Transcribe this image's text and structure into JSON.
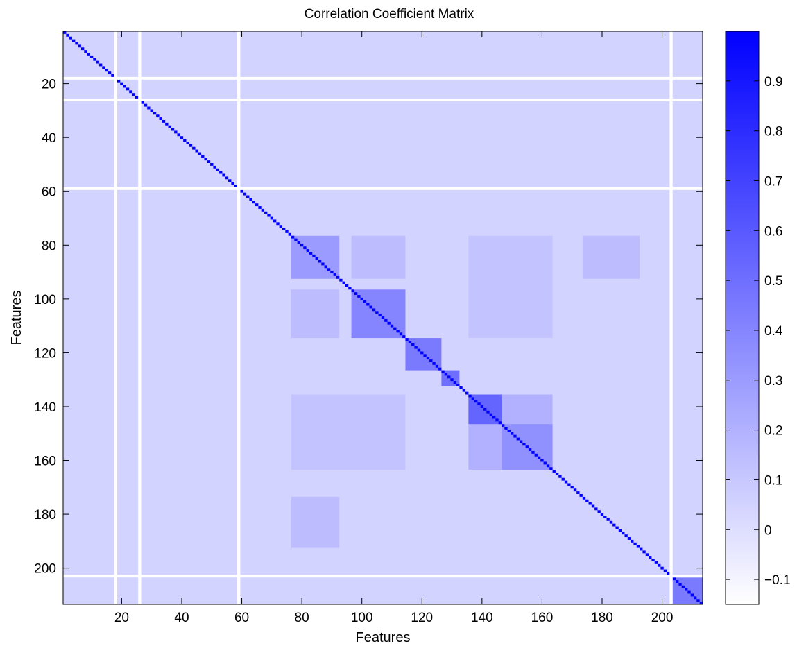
{
  "chart_data": {
    "type": "heatmap",
    "title": "Correlation Coefficient Matrix",
    "xlabel": "Features",
    "ylabel": "Features",
    "n_features": 213,
    "xlim": [
      0.5,
      213.5
    ],
    "ylim": [
      213.5,
      0.5
    ],
    "x_ticks": [
      20,
      40,
      60,
      80,
      100,
      120,
      140,
      160,
      180,
      200
    ],
    "y_ticks": [
      20,
      40,
      60,
      80,
      100,
      120,
      140,
      160,
      180,
      200
    ],
    "x_tick_labels": [
      "20",
      "40",
      "60",
      "80",
      "100",
      "120",
      "140",
      "160",
      "180",
      "200"
    ],
    "y_tick_labels": [
      "20",
      "40",
      "60",
      "80",
      "100",
      "120",
      "140",
      "160",
      "180",
      "200"
    ],
    "colorbar": {
      "range": [
        -0.15,
        1.0
      ],
      "ticks": [
        -0.1,
        0,
        0.1,
        0.2,
        0.3,
        0.4,
        0.5,
        0.6,
        0.7,
        0.8,
        0.9
      ],
      "tick_labels": [
        "−0.1",
        "0",
        "0.1",
        "0.2",
        "0.3",
        "0.4",
        "0.5",
        "0.6",
        "0.7",
        "0.8",
        "0.9"
      ],
      "color_low": "#ffffff",
      "color_high": "#0000ff"
    },
    "background_value": 0.05,
    "diagonal_value": 1.0,
    "empty_features": [
      18,
      26,
      59,
      203
    ],
    "blocks": [
      {
        "rows": [
          77,
          92
        ],
        "cols": [
          77,
          92
        ],
        "value": 0.3
      },
      {
        "rows": [
          97,
          114
        ],
        "cols": [
          97,
          114
        ],
        "value": 0.4
      },
      {
        "rows": [
          115,
          126
        ],
        "cols": [
          115,
          126
        ],
        "value": 0.45
      },
      {
        "rows": [
          127,
          132
        ],
        "cols": [
          127,
          132
        ],
        "value": 0.5
      },
      {
        "rows": [
          136,
          146
        ],
        "cols": [
          136,
          146
        ],
        "value": 0.55
      },
      {
        "rows": [
          147,
          163
        ],
        "cols": [
          147,
          163
        ],
        "value": 0.35
      },
      {
        "rows": [
          136,
          163
        ],
        "cols": [
          136,
          163
        ],
        "value": 0.2
      },
      {
        "rows": [
          204,
          213
        ],
        "cols": [
          204,
          213
        ],
        "value": 0.45
      },
      {
        "rows": [
          77,
          92
        ],
        "cols": [
          97,
          114
        ],
        "value": 0.15
      },
      {
        "rows": [
          97,
          114
        ],
        "cols": [
          77,
          92
        ],
        "value": 0.15
      },
      {
        "rows": [
          136,
          163
        ],
        "cols": [
          77,
          114
        ],
        "value": 0.12
      },
      {
        "rows": [
          77,
          114
        ],
        "cols": [
          136,
          163
        ],
        "value": 0.12
      },
      {
        "rows": [
          174,
          192
        ],
        "cols": [
          77,
          92
        ],
        "value": 0.15
      },
      {
        "rows": [
          77,
          92
        ],
        "cols": [
          174,
          192
        ],
        "value": 0.15
      }
    ]
  }
}
